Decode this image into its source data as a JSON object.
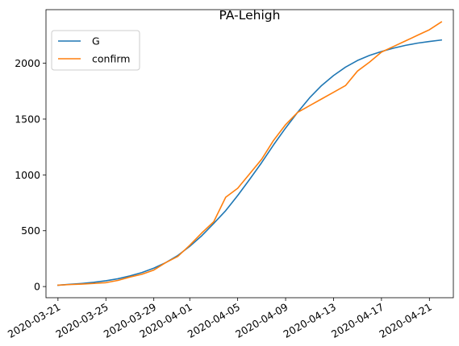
{
  "chart_data": {
    "type": "line",
    "title": "PA-Lehigh",
    "xlabel": "",
    "ylabel": "",
    "x_tick_labels": [
      "2020-03-21",
      "2020-03-25",
      "2020-03-29",
      "2020-04-01",
      "2020-04-05",
      "2020-04-09",
      "2020-04-13",
      "2020-04-17",
      "2020-04-21"
    ],
    "y_tick_labels": [
      "0",
      "500",
      "1000",
      "1500",
      "2000"
    ],
    "ylim": [
      -100,
      2480
    ],
    "xlim": [
      "2020-03-20",
      "2020-04-23"
    ],
    "legend_position": "upper-left",
    "grid": false,
    "x": [
      "2020-03-21",
      "2020-03-22",
      "2020-03-23",
      "2020-03-24",
      "2020-03-25",
      "2020-03-26",
      "2020-03-27",
      "2020-03-28",
      "2020-03-29",
      "2020-03-30",
      "2020-03-31",
      "2020-04-01",
      "2020-04-02",
      "2020-04-03",
      "2020-04-04",
      "2020-04-05",
      "2020-04-06",
      "2020-04-07",
      "2020-04-08",
      "2020-04-09",
      "2020-04-10",
      "2020-04-11",
      "2020-04-12",
      "2020-04-13",
      "2020-04-14",
      "2020-04-15",
      "2020-04-16",
      "2020-04-17",
      "2020-04-18",
      "2020-04-19",
      "2020-04-20",
      "2020-04-21",
      "2020-04-22"
    ],
    "series": [
      {
        "name": "G",
        "color": "#1f77b4",
        "values": [
          12,
          20,
          28,
          38,
          52,
          70,
          95,
          125,
          165,
          215,
          278,
          360,
          455,
          565,
          680,
          815,
          960,
          1110,
          1270,
          1420,
          1560,
          1690,
          1800,
          1890,
          1965,
          2025,
          2070,
          2105,
          2135,
          2160,
          2180,
          2195,
          2208
        ]
      },
      {
        "name": "confirm",
        "color": "#ff7f0e",
        "values": [
          12,
          18,
          22,
          28,
          35,
          55,
          85,
          110,
          148,
          215,
          270,
          370,
          480,
          580,
          800,
          880,
          1010,
          1140,
          1310,
          1450,
          1560,
          1620,
          1680,
          1740,
          1800,
          1930,
          2010,
          2100,
          2150,
          2200,
          2250,
          2300,
          2370
        ]
      }
    ]
  }
}
